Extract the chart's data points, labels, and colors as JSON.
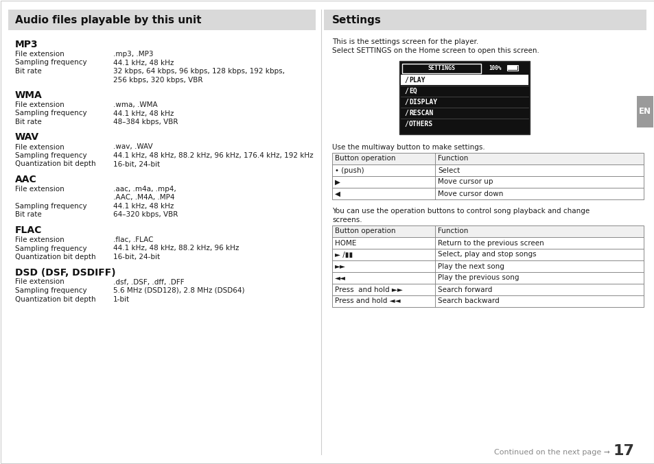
{
  "bg_color": "#ffffff",
  "header_bg": "#d9d9d9",
  "left_panel": {
    "header": "Audio files playable by this unit",
    "sections": [
      {
        "title": "MP3",
        "rows": [
          [
            "File extension",
            ".mp3, .MP3"
          ],
          [
            "Sampling frequency",
            "44.1 kHz, 48 kHz"
          ],
          [
            "Bit rate",
            "32 kbps, 64 kbps, 96 kbps, 128 kbps, 192 kbps,\n256 kbps, 320 kbps, VBR"
          ]
        ]
      },
      {
        "title": "WMA",
        "rows": [
          [
            "File extension",
            ".wma, .WMA"
          ],
          [
            "Sampling frequency",
            "44.1 kHz, 48 kHz"
          ],
          [
            "Bit rate",
            "48–384 kbps, VBR"
          ]
        ]
      },
      {
        "title": "WAV",
        "rows": [
          [
            "File extension",
            ".wav, .WAV"
          ],
          [
            "Sampling frequency",
            "44.1 kHz, 48 kHz, 88.2 kHz, 96 kHz, 176.4 kHz, 192 kHz"
          ],
          [
            "Quantization bit depth",
            "16-bit, 24-bit"
          ]
        ]
      },
      {
        "title": "AAC",
        "rows": [
          [
            "File extension",
            ".aac, .m4a, .mp4,\n.AAC, .M4A, .MP4"
          ],
          [
            "Sampling frequency",
            "44.1 kHz, 48 kHz"
          ],
          [
            "Bit rate",
            "64–320 kbps, VBR"
          ]
        ]
      },
      {
        "title": "FLAC",
        "rows": [
          [
            "File extension",
            ".flac, .FLAC"
          ],
          [
            "Sampling frequency",
            "44.1 kHz, 48 kHz, 88.2 kHz, 96 kHz"
          ],
          [
            "Quantization bit depth",
            "16-bit, 24-bit"
          ]
        ]
      },
      {
        "title": "DSD (DSF, DSDIFF)",
        "rows": [
          [
            "File extension",
            ".dsf, .DSF, .dff, .DFF"
          ],
          [
            "Sampling frequency",
            "5.6 MHz (DSD128), 2.8 MHz (DSD64)"
          ],
          [
            "Quantization bit depth",
            "1-bit"
          ]
        ]
      }
    ]
  },
  "right_panel": {
    "header": "Settings",
    "intro_line1": "This is the settings screen for the player.",
    "intro_line2": "Select SETTINGS on the Home screen to open this screen.",
    "screen_menu": [
      "PLAY",
      "EQ",
      "DISPLAY",
      "RESCAN",
      "OTHERS"
    ],
    "table1_intro": "Use the multiway button to make settings.",
    "table1_headers": [
      "Button operation",
      "Function"
    ],
    "table1_rows": [
      [
        "• (push)",
        "Select"
      ],
      [
        "▶",
        "Move cursor up"
      ],
      [
        "◀",
        "Move cursor down"
      ]
    ],
    "table2_intro1": "You can use the operation buttons to control song playback and change",
    "table2_intro2": "screens.",
    "table2_headers": [
      "Button operation",
      "Function"
    ],
    "table2_rows": [
      [
        "HOME",
        "Return to the previous screen"
      ],
      [
        "► /▮▮",
        "Select, play and stop songs"
      ],
      [
        "►►",
        "Play the next song"
      ],
      [
        "◄◄",
        "Play the previous song"
      ],
      [
        "Press  and hold ►►",
        "Search forward"
      ],
      [
        "Press and hold ◄◄",
        "Search backward"
      ]
    ],
    "footer": "Continued on the next page ➞",
    "footer_num": "17",
    "en_label": "EN"
  }
}
